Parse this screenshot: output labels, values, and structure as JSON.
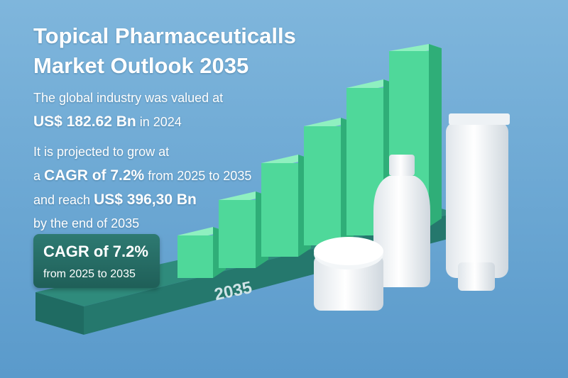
{
  "header": {
    "title_lines": [
      "Topical Pharmaceuticalls",
      "Market Outlook 2035"
    ]
  },
  "summary": {
    "intro": "The global industry was valued at",
    "value": "US$ 182.62 Bn",
    "year_text": "in 2024"
  },
  "projection": {
    "line1": "It is projected to grow at",
    "cagr_prefix": "a",
    "cagr": "CAGR of 7.2%",
    "cagr_period": "from 2025 to 2035",
    "reach_prefix": "and reach",
    "reach_value": "US$ 396,30 Bn",
    "line4": "by the end of 2035"
  },
  "badge": {
    "title": "CAGR of 7.2%",
    "subtitle": "from 2025 to 2035"
  },
  "platform_label": "2035"
}
